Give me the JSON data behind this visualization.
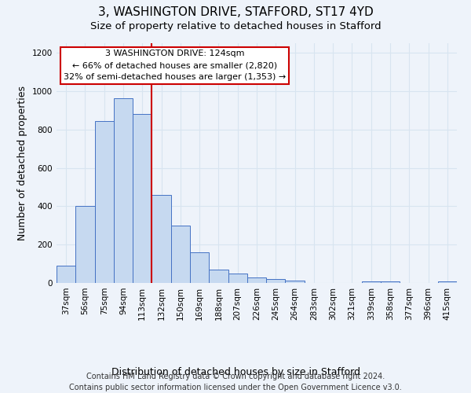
{
  "title": "3, WASHINGTON DRIVE, STAFFORD, ST17 4YD",
  "subtitle": "Size of property relative to detached houses in Stafford",
  "xlabel": "Distribution of detached houses by size in Stafford",
  "ylabel": "Number of detached properties",
  "categories": [
    "37sqm",
    "56sqm",
    "75sqm",
    "94sqm",
    "113sqm",
    "132sqm",
    "150sqm",
    "169sqm",
    "188sqm",
    "207sqm",
    "226sqm",
    "245sqm",
    "264sqm",
    "283sqm",
    "302sqm",
    "321sqm",
    "339sqm",
    "358sqm",
    "377sqm",
    "396sqm",
    "415sqm"
  ],
  "values": [
    90,
    400,
    845,
    965,
    880,
    460,
    300,
    160,
    70,
    50,
    30,
    22,
    12,
    0,
    0,
    0,
    10,
    10,
    0,
    0,
    10
  ],
  "bar_color": "#c6d9f0",
  "bar_edge_color": "#4472c4",
  "grid_color": "#d8e4f0",
  "bg_color": "#eef3fa",
  "red_line_color": "#cc0000",
  "red_line_index": 5,
  "annotation_text_line1": "3 WASHINGTON DRIVE: 124sqm",
  "annotation_text_line2": "← 66% of detached houses are smaller (2,820)",
  "annotation_text_line3": "32% of semi-detached houses are larger (1,353) →",
  "footnote": "Contains HM Land Registry data © Crown copyright and database right 2024.\nContains public sector information licensed under the Open Government Licence v3.0.",
  "ylim": [
    0,
    1250
  ],
  "yticks": [
    0,
    200,
    400,
    600,
    800,
    1000,
    1200
  ],
  "title_fontsize": 11,
  "subtitle_fontsize": 9.5,
  "xlabel_fontsize": 9,
  "ylabel_fontsize": 9,
  "tick_fontsize": 7.5,
  "annotation_fontsize": 8,
  "footnote_fontsize": 7
}
